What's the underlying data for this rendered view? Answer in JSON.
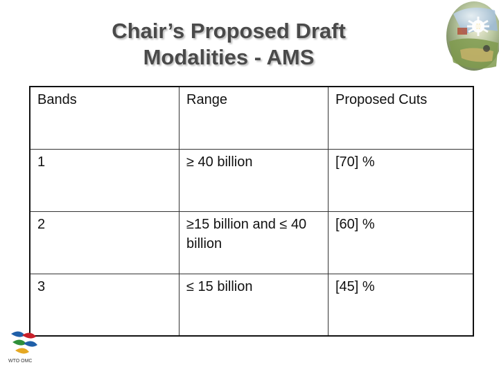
{
  "slide": {
    "title_line1": "Chair’s Proposed Draft",
    "title_line2": "Modalities - AMS"
  },
  "table": {
    "headers": [
      "Bands",
      "Range",
      "Proposed Cuts"
    ],
    "rows": [
      [
        "1",
        "≥ 40 billion",
        "[70] %"
      ],
      [
        "2",
        "≥15 billion and ≤ 40 billion",
        "[60] %"
      ],
      [
        "3",
        "≤ 15 billion",
        "[45] %"
      ]
    ]
  },
  "logo": {
    "caption": "WTO OMC",
    "icon": "wto-logo-icon"
  },
  "decoration": {
    "icon": "globe-collage-icon"
  },
  "colors": {
    "title": "#4a4a4a",
    "text": "#111111",
    "border": "#333333",
    "logo_blue": "#1f5fa8",
    "logo_red": "#c8202a",
    "logo_green": "#2f8f3a"
  }
}
